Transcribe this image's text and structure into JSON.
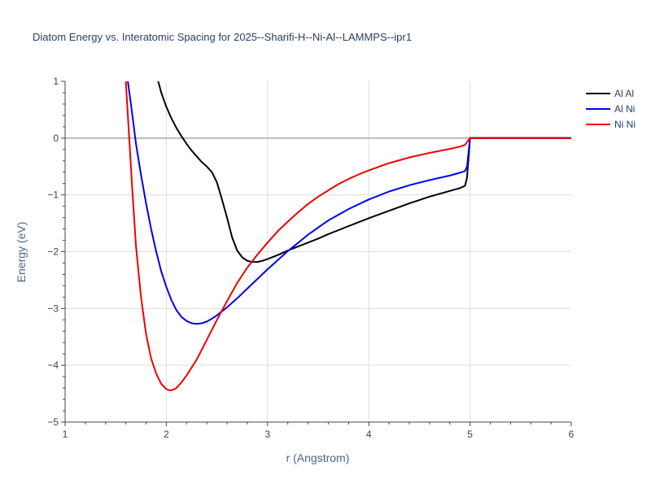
{
  "chart_data": {
    "type": "line",
    "title": "Diatom Energy vs. Interatomic Spacing for 2025--Sharifi-H--Ni-Al--LAMMPS--ipr1",
    "xlabel": "r (Angstrom)",
    "ylabel": "Energy (eV)",
    "xlim": [
      1,
      6
    ],
    "ylim": [
      -5,
      1
    ],
    "x_ticks": [
      1,
      2,
      3,
      4,
      5,
      6
    ],
    "x_tick_labels": [
      "1",
      "2",
      "3",
      "4",
      "5",
      "6"
    ],
    "y_ticks": [
      -5,
      -4,
      -3,
      -2,
      -1,
      0,
      1
    ],
    "y_tick_labels": [
      "−5",
      "−4",
      "−3",
      "−2",
      "−1",
      "0",
      "1"
    ],
    "grid": true,
    "legend_position": "top-right",
    "series": [
      {
        "name": "Al Al",
        "color": "#000000",
        "x": [
          1.92,
          1.95,
          2.0,
          2.05,
          2.1,
          2.15,
          2.2,
          2.25,
          2.3,
          2.35,
          2.4,
          2.45,
          2.5,
          2.55,
          2.6,
          2.65,
          2.7,
          2.75,
          2.8,
          2.85,
          2.9,
          2.95,
          3.0,
          3.1,
          3.2,
          3.3,
          3.4,
          3.5,
          3.6,
          3.7,
          3.8,
          3.9,
          4.0,
          4.2,
          4.4,
          4.6,
          4.8,
          4.9,
          4.95,
          4.97,
          5.0,
          5.5,
          6.0
        ],
        "y": [
          1.0,
          0.8,
          0.55,
          0.35,
          0.18,
          0.03,
          -0.1,
          -0.22,
          -0.32,
          -0.42,
          -0.5,
          -0.6,
          -0.78,
          -1.08,
          -1.4,
          -1.75,
          -1.98,
          -2.1,
          -2.16,
          -2.18,
          -2.18,
          -2.16,
          -2.13,
          -2.06,
          -1.98,
          -1.91,
          -1.84,
          -1.77,
          -1.69,
          -1.62,
          -1.55,
          -1.48,
          -1.41,
          -1.28,
          -1.15,
          -1.03,
          -0.93,
          -0.88,
          -0.84,
          -0.7,
          0.0,
          0.0,
          0.0
        ]
      },
      {
        "name": "Al Ni",
        "color": "#0000ee",
        "x": [
          1.62,
          1.65,
          1.7,
          1.75,
          1.8,
          1.85,
          1.9,
          1.95,
          2.0,
          2.05,
          2.1,
          2.15,
          2.2,
          2.25,
          2.3,
          2.35,
          2.4,
          2.45,
          2.5,
          2.6,
          2.7,
          2.8,
          2.9,
          3.0,
          3.2,
          3.4,
          3.6,
          3.8,
          4.0,
          4.2,
          4.4,
          4.6,
          4.8,
          4.9,
          4.95,
          4.97,
          5.0,
          5.5,
          6.0
        ],
        "y": [
          1.0,
          0.6,
          -0.1,
          -0.65,
          -1.15,
          -1.6,
          -2.0,
          -2.35,
          -2.62,
          -2.85,
          -3.03,
          -3.15,
          -3.22,
          -3.26,
          -3.27,
          -3.26,
          -3.23,
          -3.18,
          -3.12,
          -2.98,
          -2.82,
          -2.65,
          -2.48,
          -2.31,
          -1.99,
          -1.7,
          -1.45,
          -1.25,
          -1.08,
          -0.94,
          -0.83,
          -0.74,
          -0.66,
          -0.61,
          -0.58,
          -0.5,
          0.0,
          0.0,
          0.0
        ]
      },
      {
        "name": "Ni Ni",
        "color": "#ee0000",
        "x": [
          1.6,
          1.63,
          1.66,
          1.7,
          1.75,
          1.8,
          1.85,
          1.9,
          1.95,
          2.0,
          2.03,
          2.05,
          2.08,
          2.1,
          2.15,
          2.2,
          2.3,
          2.4,
          2.5,
          2.6,
          2.7,
          2.8,
          2.9,
          3.0,
          3.1,
          3.2,
          3.3,
          3.4,
          3.5,
          3.6,
          3.7,
          3.8,
          3.9,
          4.0,
          4.2,
          4.4,
          4.6,
          4.8,
          4.9,
          4.95,
          5.0,
          5.5,
          6.0
        ],
        "y": [
          1.0,
          0.1,
          -0.8,
          -1.9,
          -2.8,
          -3.45,
          -3.88,
          -4.15,
          -4.33,
          -4.42,
          -4.44,
          -4.44,
          -4.42,
          -4.4,
          -4.3,
          -4.18,
          -3.9,
          -3.55,
          -3.2,
          -2.87,
          -2.55,
          -2.28,
          -2.05,
          -1.84,
          -1.64,
          -1.47,
          -1.31,
          -1.16,
          -1.03,
          -0.92,
          -0.81,
          -0.72,
          -0.64,
          -0.57,
          -0.44,
          -0.34,
          -0.26,
          -0.19,
          -0.15,
          -0.12,
          0.0,
          0.0,
          0.0
        ]
      }
    ]
  }
}
